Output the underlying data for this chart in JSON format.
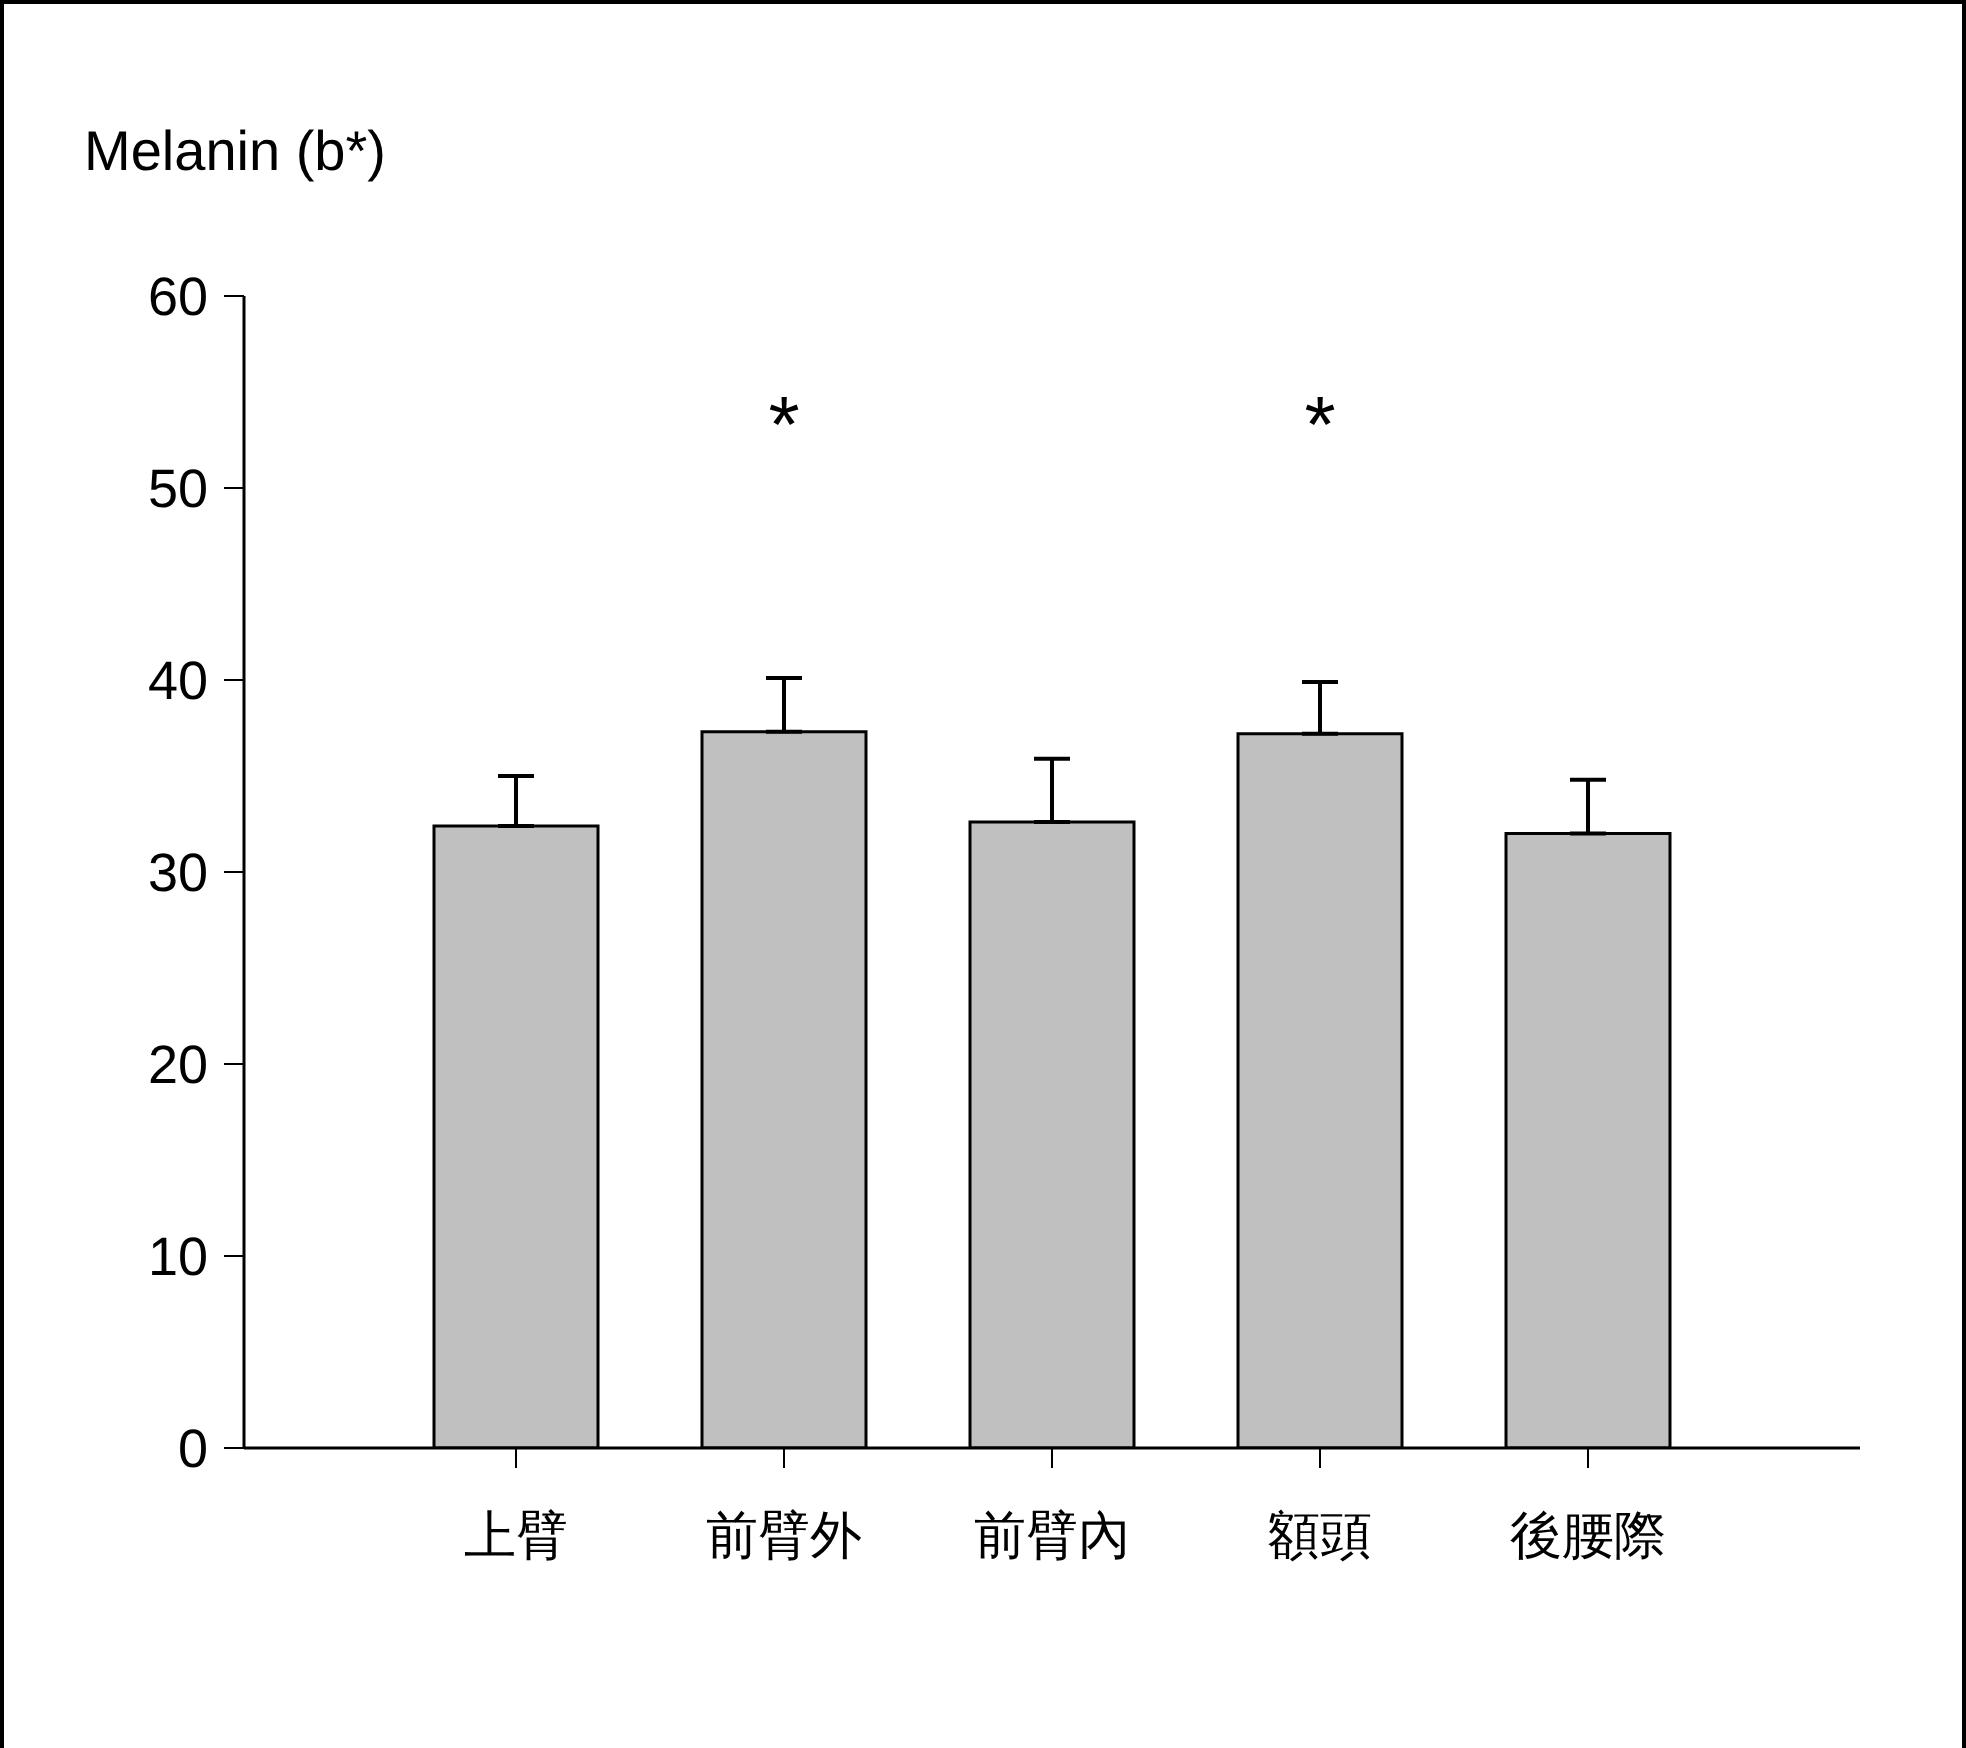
{
  "chart_data": {
    "type": "bar",
    "title": "Melanin (b*)",
    "categories": [
      "上臂",
      "前臂外",
      "前臂內",
      "額頭",
      "後腰際"
    ],
    "values": [
      32.4,
      37.3,
      32.6,
      37.2,
      32.0
    ],
    "errors": [
      [
        32.4,
        35.0
      ],
      [
        37.3,
        40.1
      ],
      [
        32.6,
        35.9
      ],
      [
        37.2,
        39.9
      ],
      [
        32.0,
        34.8
      ]
    ],
    "color": "#c0c0c0",
    "ylim": [
      0,
      60
    ],
    "yticks": [
      0,
      10,
      20,
      30,
      40,
      50,
      60
    ],
    "grid": false,
    "legend": false,
    "annotations": [
      "*",
      "*"
    ]
  }
}
